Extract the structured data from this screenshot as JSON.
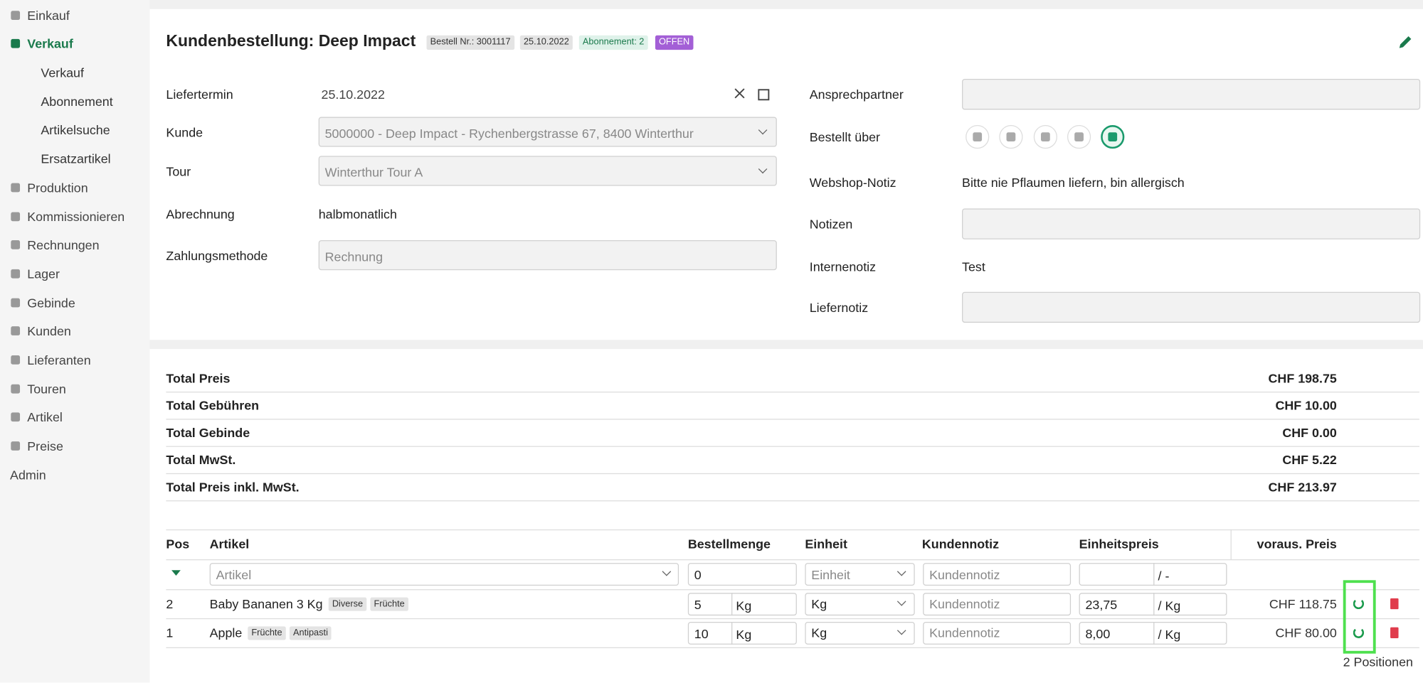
{
  "sidebar": {
    "items": [
      "Einkauf",
      "Verkauf",
      "Produktion",
      "Kommissionieren",
      "Rechnungen",
      "Lager",
      "Gebinde",
      "Kunden",
      "Lieferanten",
      "Touren",
      "Artikel",
      "Preise",
      "Admin"
    ],
    "subitems": [
      "Verkauf",
      "Abonnement",
      "Artikelsuche",
      "Ersatzartikel"
    ]
  },
  "header": {
    "title": "Kundenbestellung: Deep Impact",
    "badges": [
      "Bestell Nr.: 3001117",
      "25.10.2022",
      "Abonnement: 2",
      "OFFEN"
    ]
  },
  "form_left": [
    {
      "label": "Liefertermin",
      "value": "25.10.2022"
    },
    {
      "label": "Kunde",
      "value": "5000000 - Deep Impact - Rychenbergstrasse 67, 8400 Winterthur"
    },
    {
      "label": "Tour",
      "value": "Winterthur Tour A"
    },
    {
      "label": "Abrechnung",
      "value": "halbmonatlich"
    },
    {
      "label": "Zahlungsmethode",
      "value": "Rechnung"
    }
  ],
  "form_right": [
    {
      "label": "Ansprechpartner"
    },
    {
      "label": "Bestellt über"
    },
    {
      "label": "Webshop-Notiz",
      "value": "Bitte nie Pflaumen liefern, bin allergisch"
    },
    {
      "label": "Notizen"
    },
    {
      "label": "Internenotiz",
      "value": "Test"
    },
    {
      "label": "Liefernotiz"
    }
  ],
  "totals": [
    {
      "label": "Total Preis",
      "value": "CHF 198.75"
    },
    {
      "label": "Total Gebühren",
      "value": "CHF 10.00"
    },
    {
      "label": "Total Gebinde",
      "value": "CHF 0.00"
    },
    {
      "label": "Total MwSt.",
      "value": "CHF 5.22"
    },
    {
      "label": "Total Preis inkl. MwSt.",
      "value": "CHF 213.97"
    }
  ],
  "table": {
    "columns": [
      "Pos",
      "Artikel",
      "Bestellmenge",
      "Einheit",
      "Kundennotiz",
      "Einheitspreis",
      "voraus. Preis"
    ],
    "new_row": {
      "artikel": "Artikel",
      "menge": "0",
      "einheit": "Einheit",
      "notiz": "Kundennotiz",
      "unit": "/ -"
    },
    "rows": [
      {
        "pos": "2",
        "artikel": "Baby Bananen 3 Kg",
        "tags": [
          "Diverse",
          "Früchte"
        ],
        "menge": "5",
        "menge_unit": "Kg",
        "einheit": "Kg",
        "notiz": "Kundennotiz",
        "preis": "23,75",
        "preis_unit": "/ Kg",
        "total": "CHF 118.75"
      },
      {
        "pos": "1",
        "artikel": "Apple",
        "tags": [
          "Früchte",
          "Antipasti"
        ],
        "menge": "10",
        "menge_unit": "Kg",
        "einheit": "Kg",
        "notiz": "Kundennotiz",
        "preis": "8,00",
        "preis_unit": "/ Kg",
        "total": "CHF 80.00"
      }
    ]
  },
  "footer": "2 Positionen"
}
